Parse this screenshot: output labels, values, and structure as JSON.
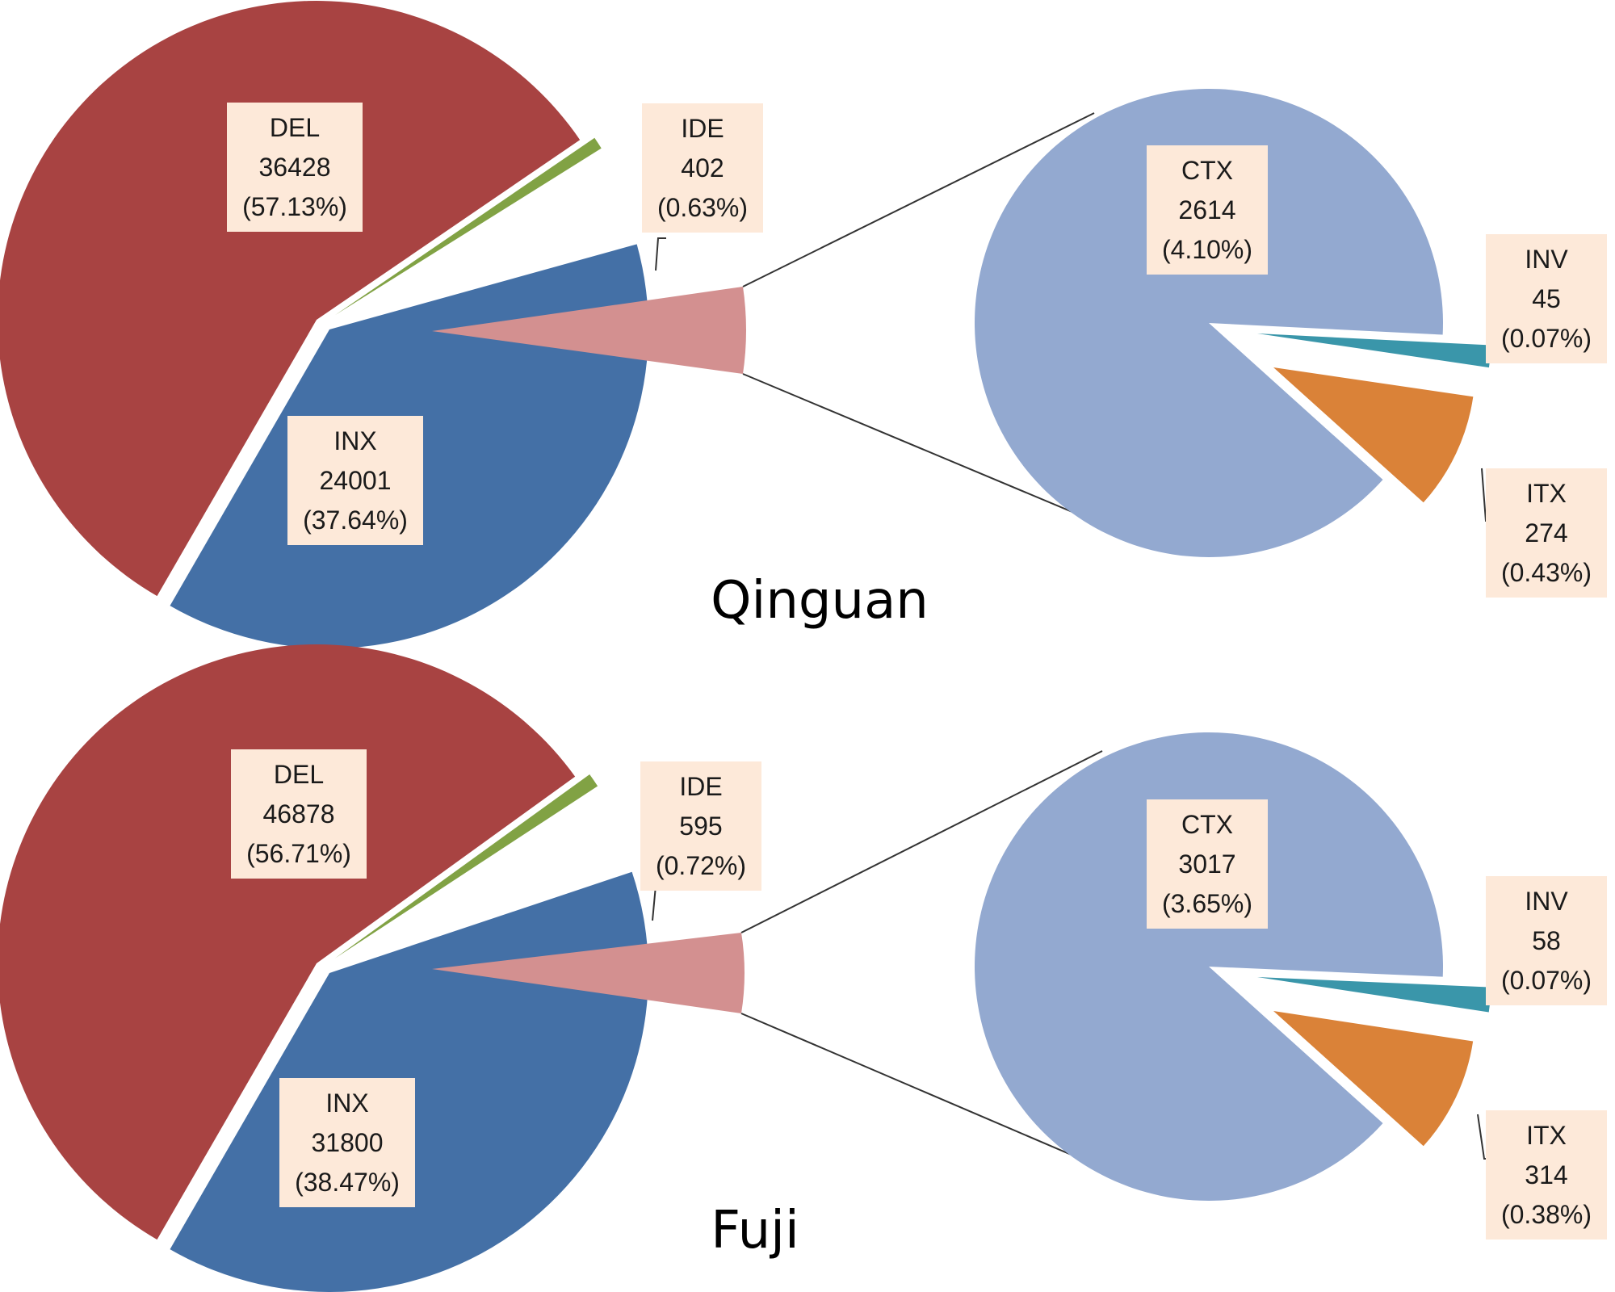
{
  "colors": {
    "DEL": "#a84342",
    "INX": "#4470a6",
    "IDE": "#81a244",
    "OTHER": "#d39090",
    "CTX": "#93a9d0",
    "INV": "#3a96aa",
    "ITX": "#da8238",
    "label_box": "#fde9d9"
  },
  "chart_data": [
    {
      "type": "pie",
      "title": "Qinguan",
      "slices": [
        {
          "category": "DEL",
          "count": "36428",
          "percent": "(57.13%)",
          "value": 57.13
        },
        {
          "category": "INX",
          "count": "24001",
          "percent": "(37.64%)",
          "value": 37.64
        },
        {
          "category": "IDE",
          "count": "402",
          "percent": "(0.63%)",
          "value": 0.63
        }
      ],
      "sub_slices": [
        {
          "category": "CTX",
          "count": "2614",
          "percent": "(4.10%)",
          "value": 4.1
        },
        {
          "category": "INV",
          "count": "45",
          "percent": "(0.07%)",
          "value": 0.07
        },
        {
          "category": "ITX",
          "count": "274",
          "percent": "(0.43%)",
          "value": 0.43
        }
      ]
    },
    {
      "type": "pie",
      "title": "Fuji",
      "slices": [
        {
          "category": "DEL",
          "count": "46878",
          "percent": "(56.71%)",
          "value": 56.71
        },
        {
          "category": "INX",
          "count": "31800",
          "percent": "(38.47%)",
          "value": 38.47
        },
        {
          "category": "IDE",
          "count": "595",
          "percent": "(0.72%)",
          "value": 0.72
        }
      ],
      "sub_slices": [
        {
          "category": "CTX",
          "count": "3017",
          "percent": "(3.65%)",
          "value": 3.65
        },
        {
          "category": "INV",
          "count": "58",
          "percent": "(0.07%)",
          "value": 0.07
        },
        {
          "category": "ITX",
          "count": "314",
          "percent": "(0.38%)",
          "value": 0.38
        }
      ]
    }
  ]
}
